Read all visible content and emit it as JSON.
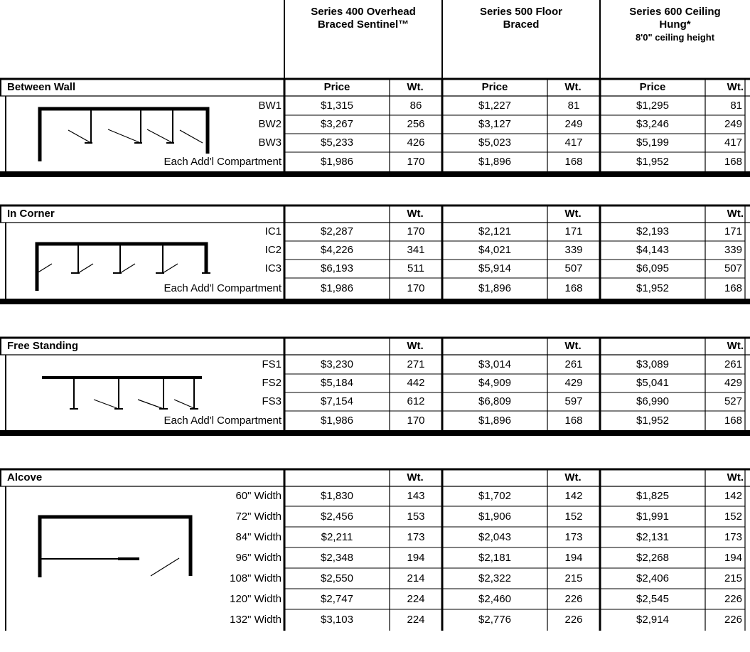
{
  "header": {
    "series": [
      {
        "line1": "Series 400 Overhead",
        "line2": "Braced Sentinel™",
        "line3": ""
      },
      {
        "line1": "Series 500 Floor",
        "line2": "Braced",
        "line3": ""
      },
      {
        "line1": "Series 600 Ceiling",
        "line2": "Hung*",
        "line3": "8'0\" ceiling height"
      }
    ]
  },
  "sections": [
    {
      "title": "Between Wall",
      "price_label": "Price",
      "wt_label": "Wt.",
      "rows": [
        {
          "label": "BW1",
          "cells": [
            "$1,315",
            "86",
            "$1,227",
            "81",
            "$1,295",
            "81"
          ]
        },
        {
          "label": "BW2",
          "cells": [
            "$3,267",
            "256",
            "$3,127",
            "249",
            "$3,246",
            "249"
          ]
        },
        {
          "label": "BW3",
          "cells": [
            "$5,233",
            "426",
            "$5,023",
            "417",
            "$5,199",
            "417"
          ]
        },
        {
          "label": "Each Add'l Compartment",
          "cells": [
            "$1,986",
            "170",
            "$1,896",
            "168",
            "$1,952",
            "168"
          ]
        }
      ]
    },
    {
      "title": "In Corner",
      "price_label": "",
      "wt_label": "Wt.",
      "rows": [
        {
          "label": "IC1",
          "cells": [
            "$2,287",
            "170",
            "$2,121",
            "171",
            "$2,193",
            "171"
          ]
        },
        {
          "label": "IC2",
          "cells": [
            "$4,226",
            "341",
            "$4,021",
            "339",
            "$4,143",
            "339"
          ]
        },
        {
          "label": "IC3",
          "cells": [
            "$6,193",
            "511",
            "$5,914",
            "507",
            "$6,095",
            "507"
          ]
        },
        {
          "label": "Each Add'l Compartment",
          "cells": [
            "$1,986",
            "170",
            "$1,896",
            "168",
            "$1,952",
            "168"
          ]
        }
      ]
    },
    {
      "title": "Free Standing",
      "price_label": "",
      "wt_label": "Wt.",
      "rows": [
        {
          "label": "FS1",
          "cells": [
            "$3,230",
            "271",
            "$3,014",
            "261",
            "$3,089",
            "261"
          ]
        },
        {
          "label": "FS2",
          "cells": [
            "$5,184",
            "442",
            "$4,909",
            "429",
            "$5,041",
            "429"
          ]
        },
        {
          "label": "FS3",
          "cells": [
            "$7,154",
            "612",
            "$6,809",
            "597",
            "$6,990",
            "527"
          ]
        },
        {
          "label": "Each Add'l Compartment",
          "cells": [
            "$1,986",
            "170",
            "$1,896",
            "168",
            "$1,952",
            "168"
          ]
        }
      ]
    },
    {
      "title": "Alcove",
      "price_label": "",
      "wt_label": "Wt.",
      "rows": [
        {
          "label": "60\" Width",
          "cells": [
            "$1,830",
            "143",
            "$1,702",
            "142",
            "$1,825",
            "142"
          ]
        },
        {
          "label": "72\" Width",
          "cells": [
            "$2,456",
            "153",
            "$1,906",
            "152",
            "$1,991",
            "152"
          ]
        },
        {
          "label": "84\" Width",
          "cells": [
            "$2,211",
            "173",
            "$2,043",
            "173",
            "$2,131",
            "173"
          ]
        },
        {
          "label": "96\" Width",
          "cells": [
            "$2,348",
            "194",
            "$2,181",
            "194",
            "$2,268",
            "194"
          ]
        },
        {
          "label": "108\" Width",
          "cells": [
            "$2,550",
            "214",
            "$2,322",
            "215",
            "$2,406",
            "215"
          ]
        },
        {
          "label": "120\" Width",
          "cells": [
            "$2,747",
            "224",
            "$2,460",
            "226",
            "$2,545",
            "226"
          ]
        },
        {
          "label": "132\" Width",
          "cells": [
            "$3,103",
            "224",
            "$2,776",
            "226",
            "$2,914",
            "226"
          ]
        }
      ]
    }
  ]
}
